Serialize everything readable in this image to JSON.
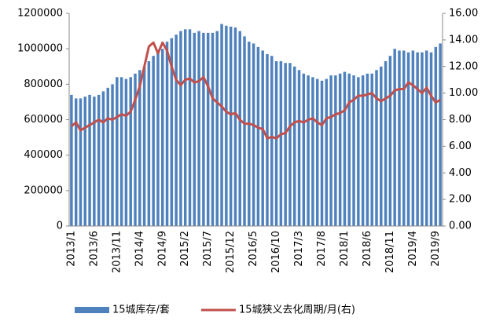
{
  "chart_data": {
    "type": "bar-line",
    "categories": [
      "2013/1",
      null,
      null,
      null,
      null,
      "2013/6",
      null,
      null,
      null,
      null,
      "2013/11",
      null,
      null,
      null,
      null,
      "2014/4",
      null,
      null,
      null,
      null,
      "2014/9",
      null,
      null,
      null,
      null,
      "2015/2",
      null,
      null,
      null,
      null,
      "2015/7",
      null,
      null,
      null,
      null,
      "2015/12",
      null,
      null,
      null,
      null,
      "2016/5",
      null,
      null,
      null,
      null,
      "2016/10",
      null,
      null,
      null,
      null,
      "2017/3",
      null,
      null,
      null,
      null,
      "2017/8",
      null,
      null,
      null,
      null,
      "2018/1",
      null,
      null,
      null,
      null,
      "2018/6",
      null,
      null,
      null,
      null,
      "2018/11",
      null,
      null,
      null,
      null,
      "2019/4",
      null,
      null,
      null,
      null,
      "2019/9",
      null
    ],
    "series": [
      {
        "name": "15城库存/套",
        "type": "bar",
        "color": "#4f81bd",
        "values": [
          740000,
          720000,
          720000,
          730000,
          740000,
          730000,
          740000,
          760000,
          780000,
          800000,
          840000,
          840000,
          830000,
          840000,
          860000,
          880000,
          900000,
          930000,
          960000,
          980000,
          1000000,
          1040000,
          1060000,
          1080000,
          1100000,
          1110000,
          1110000,
          1090000,
          1100000,
          1090000,
          1090000,
          1090000,
          1100000,
          1140000,
          1130000,
          1125000,
          1120000,
          1100000,
          1070000,
          1040000,
          1030000,
          1010000,
          990000,
          970000,
          960000,
          930000,
          930000,
          920000,
          920000,
          900000,
          880000,
          860000,
          850000,
          840000,
          830000,
          820000,
          830000,
          850000,
          850000,
          860000,
          870000,
          860000,
          850000,
          840000,
          850000,
          860000,
          860000,
          880000,
          900000,
          930000,
          960000,
          1000000,
          990000,
          990000,
          980000,
          990000,
          980000,
          980000,
          990000,
          980000,
          1010000,
          1030000
        ]
      },
      {
        "name": "15城狭义去化周期/月(右)",
        "type": "line",
        "axis": "y2",
        "color": "#c0504d",
        "values": [
          7.5,
          7.8,
          7.2,
          7.4,
          7.6,
          7.8,
          8.0,
          7.8,
          8.1,
          8.0,
          8.2,
          8.4,
          8.3,
          8.6,
          9.5,
          10.5,
          12.0,
          13.5,
          13.8,
          13.0,
          13.8,
          13.2,
          12.0,
          11.0,
          10.6,
          11.0,
          11.1,
          10.8,
          10.9,
          11.2,
          10.5,
          9.6,
          9.3,
          9.0,
          8.6,
          8.4,
          8.5,
          8.0,
          7.7,
          7.7,
          7.6,
          7.4,
          7.3,
          6.6,
          6.7,
          6.6,
          6.9,
          7.0,
          7.5,
          7.8,
          7.9,
          7.8,
          8.0,
          8.1,
          7.8,
          7.6,
          8.1,
          8.2,
          8.4,
          8.5,
          8.7,
          9.3,
          9.5,
          9.8,
          9.8,
          9.9,
          10.0,
          9.6,
          9.4,
          9.6,
          9.8,
          10.2,
          10.3,
          10.3,
          10.8,
          10.6,
          10.3,
          10.0,
          10.4,
          9.8,
          9.3,
          9.5
        ]
      }
    ],
    "ylim": [
      0,
      1200000
    ],
    "yticks": [
      0,
      200000,
      400000,
      600000,
      800000,
      1000000,
      1200000
    ],
    "y2lim": [
      0,
      16
    ],
    "y2ticks": [
      {
        "value": 0,
        "label": "0.00"
      },
      {
        "value": 2,
        "label": "2.00"
      },
      {
        "value": 4,
        "label": "4.00"
      },
      {
        "value": 6,
        "label": "6.00"
      },
      {
        "value": 8,
        "label": "8.00"
      },
      {
        "value": 10,
        "label": "10.00"
      },
      {
        "value": 12,
        "label": "12.00"
      },
      {
        "value": 14,
        "label": "14.00"
      },
      {
        "value": 16,
        "label": "16.00"
      }
    ]
  }
}
